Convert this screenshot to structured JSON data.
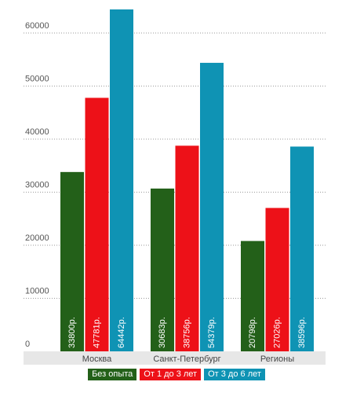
{
  "chart_data": {
    "type": "bar",
    "title": "",
    "xlabel": "",
    "ylabel": "",
    "categories": [
      "Москва",
      "Санкт-Петербург",
      "Регионы"
    ],
    "yticks": [
      "0",
      "10000",
      "20000",
      "30000",
      "40000",
      "50000",
      "60000"
    ],
    "ylim": [
      0,
      64442
    ],
    "grid": true,
    "legend_position": "bottom",
    "series": [
      {
        "name": "Без опыта",
        "color": "#236019",
        "values": [
          33800,
          30683,
          20798
        ],
        "labels": [
          "33800р.",
          "30683р.",
          "20798р."
        ]
      },
      {
        "name": "От 1 до 3 лет",
        "color": "#ed1118",
        "values": [
          47781,
          38756,
          27026
        ],
        "labels": [
          "47781р.",
          "38756р.",
          "27026р."
        ]
      },
      {
        "name": "От 3 до 6 лет",
        "color": "#0f93b4",
        "values": [
          64442,
          54379,
          38596
        ],
        "labels": [
          "64442р.",
          "54379р.",
          "38596р."
        ]
      }
    ]
  }
}
